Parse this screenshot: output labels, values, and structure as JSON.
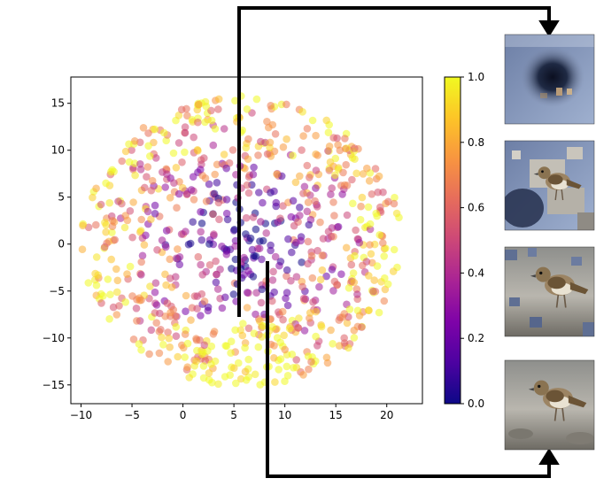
{
  "chart_data": {
    "type": "scatter",
    "title": "",
    "xlabel": "",
    "ylabel": "",
    "xlim": [
      -11,
      23.5
    ],
    "ylim": [
      -17,
      17.8
    ],
    "xticks": [
      -10,
      -5,
      0,
      5,
      10,
      15,
      20
    ],
    "yticks": [
      -15,
      -10,
      -5,
      0,
      5,
      10,
      15
    ],
    "xtick_labels": [
      "−10",
      "−5",
      "0",
      "5",
      "10",
      "15",
      "20"
    ],
    "ytick_labels": [
      "−15",
      "−10",
      "−5",
      "0",
      "5",
      "10",
      "15"
    ],
    "colormap": "plasma",
    "marker_opacity": 0.55,
    "colorbar": {
      "range": [
        0,
        1
      ],
      "ticks": [
        0.0,
        0.2,
        0.4,
        0.6,
        0.8,
        1.0
      ],
      "tick_labels": [
        "0.0",
        "0.2",
        "0.4",
        "0.6",
        "0.8",
        "1.0"
      ]
    },
    "cloud_center": [
      5.8,
      0.3
    ],
    "cloud_radius": 15.5,
    "point_count": 850,
    "arrows": [
      {
        "from": [
          5.6,
          -8
        ],
        "to_image": 1
      },
      {
        "from": [
          8.4,
          -2
        ],
        "to_image": 4
      }
    ],
    "image_panels": [
      "masked-bird-panel-1",
      "masked-bird-panel-2",
      "masked-bird-panel-3",
      "masked-bird-panel-4"
    ]
  }
}
